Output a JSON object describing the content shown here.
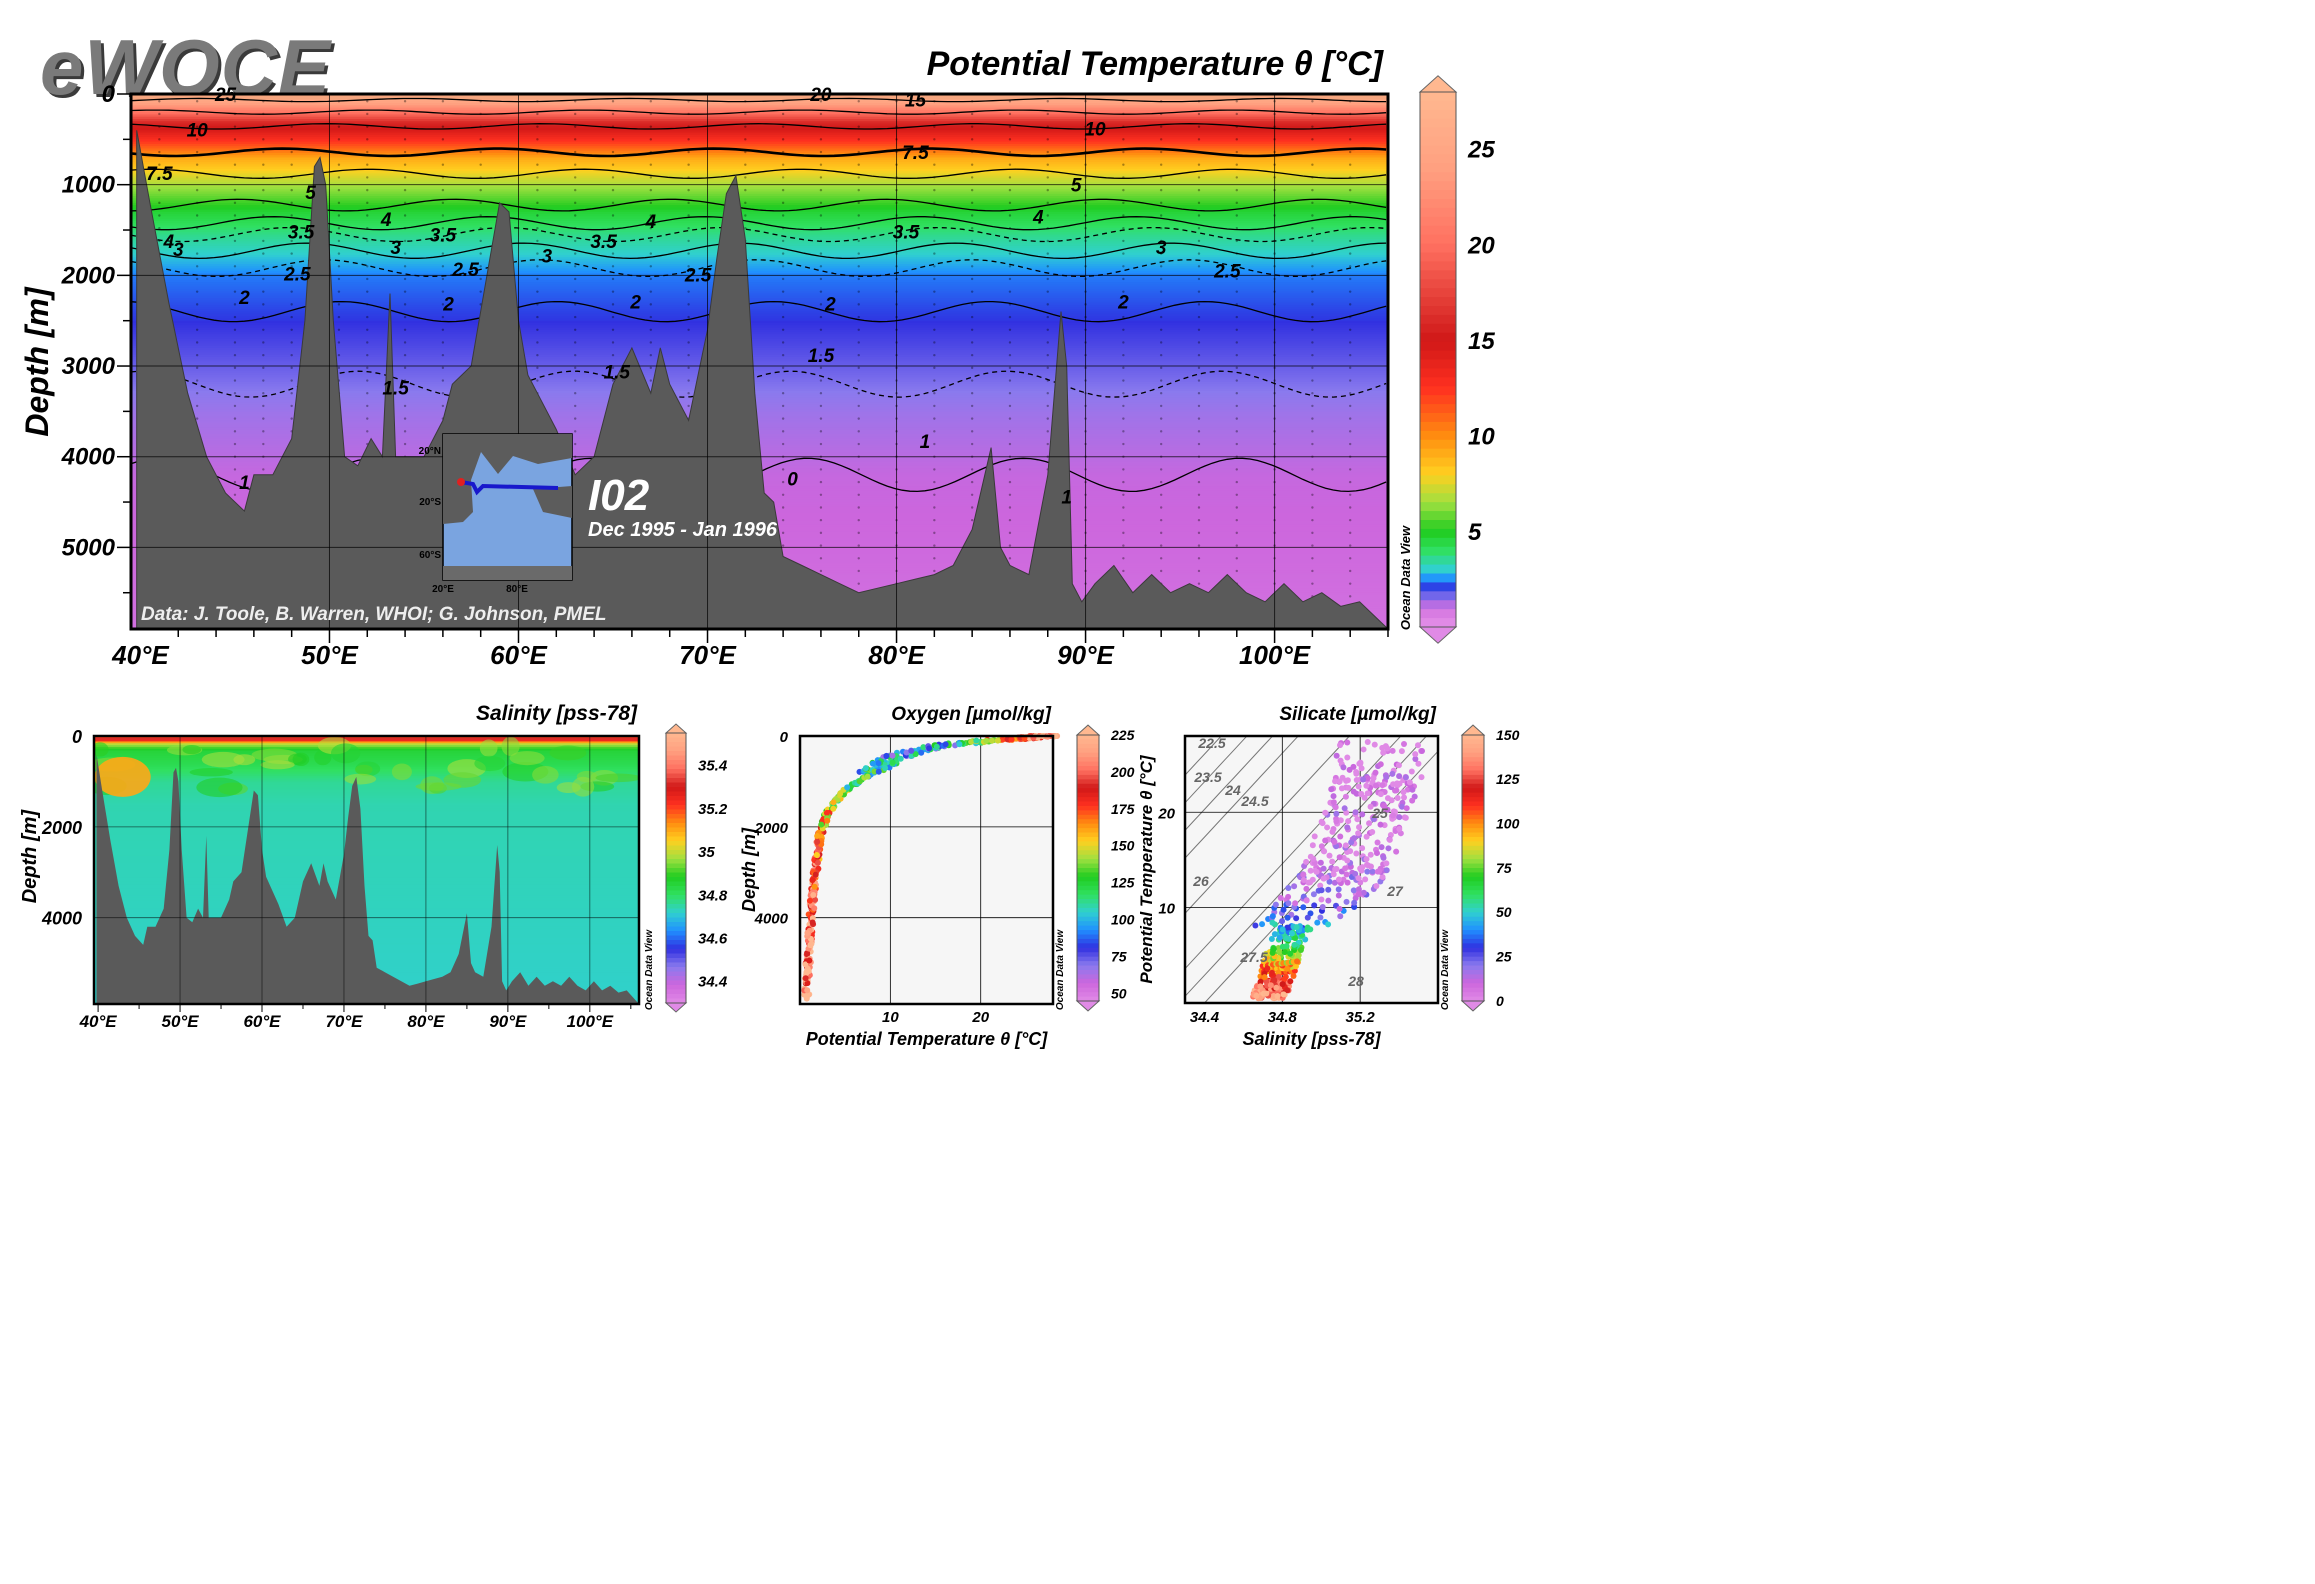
{
  "brand": {
    "logo_text": "eWOCE"
  },
  "watermark": "Ocean Data View",
  "colors": {
    "seafloor": "#5a5a5a",
    "frame": "#000000",
    "odv_scale": [
      "#e08ae6",
      "#cc66dd",
      "#8a7aee",
      "#3030e0",
      "#2090ff",
      "#30d0d0",
      "#30e060",
      "#20cc20",
      "#a0e040",
      "#ffd020",
      "#ff8c10",
      "#ff3020",
      "#d01818",
      "#ff7060",
      "#ffa080",
      "#ffb890"
    ]
  },
  "main_section": {
    "title": "Potential Temperature θ [°C]",
    "ylabel": "Depth [m]",
    "y_ticks": [
      "0",
      "1000",
      "2000",
      "3000",
      "4000",
      "5000"
    ],
    "x_ticks": [
      "40°E",
      "50°E",
      "60°E",
      "70°E",
      "80°E",
      "90°E",
      "100°E"
    ],
    "section_name": "I02",
    "date_range": "Dec 1995 - Jan 1996",
    "credit": "Data: J. Toole, B. Warren, WHOI; G. Johnson, PMEL",
    "colorbar_ticks": [
      "25",
      "20",
      "15",
      "10",
      "5"
    ],
    "contour_labels": [
      "25",
      "20",
      "15",
      "10",
      "10",
      "7.5",
      "7.5",
      "5",
      "5",
      "4",
      "4",
      "4",
      "4",
      "3.5",
      "3.5",
      "3.5",
      "3.5",
      "3",
      "3",
      "3",
      "3",
      "2.5",
      "2.5",
      "2.5",
      "2.5",
      "2",
      "2",
      "2",
      "2",
      "2",
      "1.5",
      "1.5",
      "1.5",
      "1",
      "1",
      "1",
      "0"
    ],
    "inset_map": {
      "lat_labels": [
        "20°N",
        "20°S",
        "60°S"
      ],
      "lon_labels": [
        "20°E",
        "80°E"
      ]
    }
  },
  "salinity_panel": {
    "title": "Salinity [pss-78]",
    "ylabel": "Depth [m]",
    "y_ticks": [
      "0",
      "2000",
      "4000"
    ],
    "x_ticks": [
      "40°E",
      "50°E",
      "60°E",
      "70°E",
      "80°E",
      "90°E",
      "100°E"
    ],
    "colorbar_ticks": [
      "35.4",
      "35.2",
      "35",
      "34.8",
      "34.6",
      "34.4"
    ]
  },
  "oxygen_panel": {
    "title": "Oxygen [µmol/kg]",
    "xlabel": "Potential Temperature θ [°C]",
    "ylabel": "Depth [m]",
    "y_ticks": [
      "0",
      "2000",
      "4000"
    ],
    "x_ticks": [
      "10",
      "20"
    ],
    "colorbar_ticks": [
      "225",
      "200",
      "175",
      "150",
      "125",
      "100",
      "75",
      "50"
    ]
  },
  "silicate_panel": {
    "title": "Silicate [µmol/kg]",
    "xlabel": "Salinity [pss-78]",
    "ylabel": "Potential Temperature θ [°C]",
    "y_ticks": [
      "20",
      "10"
    ],
    "x_ticks": [
      "34.4",
      "34.8",
      "35.2"
    ],
    "colorbar_ticks": [
      "150",
      "125",
      "100",
      "75",
      "50",
      "25",
      "0"
    ],
    "density_labels": [
      "22.5",
      "23.5",
      "24",
      "24.5",
      "25",
      "26",
      "27",
      "27.5",
      "28"
    ]
  },
  "chart_data": [
    {
      "type": "heatmap",
      "title": "Potential Temperature θ [°C]",
      "xlabel": "",
      "ylabel": "Depth [m]",
      "xlim": [
        39.5,
        106
      ],
      "ylim": [
        5900,
        0
      ],
      "colorbar_range": [
        0,
        28
      ],
      "contour_levels": [
        1,
        1.5,
        2,
        2.5,
        3,
        3.5,
        4,
        5,
        7.5,
        10,
        15,
        20,
        25
      ],
      "profile_depth": [
        0,
        100,
        300,
        700,
        1000,
        1300,
        1550,
        1800,
        2000,
        2400,
        2900,
        3500,
        4200,
        5900
      ],
      "profile_temp": [
        27,
        24,
        16,
        9,
        6.5,
        4.5,
        3.5,
        2.8,
        2.3,
        2.0,
        1.7,
        1.3,
        1.0,
        0.8
      ],
      "bathymetry_lon": [
        39.8,
        40.5,
        41.5,
        42.5,
        43.5,
        44.5,
        45.5,
        46,
        47,
        48,
        48.7,
        49.2,
        49.5,
        49.8,
        50.2,
        50.8,
        51.5,
        52.2,
        52.8,
        53.2,
        53.5,
        54,
        55,
        56,
        56.5,
        57.5,
        58.5,
        59,
        59.5,
        60,
        60.5,
        61,
        62,
        63,
        64,
        65,
        66,
        67,
        67.5,
        68,
        69,
        70,
        70.5,
        71,
        71.5,
        72,
        72.5,
        73,
        73.5,
        74,
        75,
        76,
        77,
        78,
        79,
        80,
        81,
        82,
        83,
        84,
        85,
        85.5,
        86,
        87,
        88,
        88.7,
        89,
        89.3,
        89.8,
        90.5,
        91.5,
        92.5,
        93.5,
        94.5,
        95.5,
        96.5,
        97.5,
        98.5,
        99.5,
        100.5,
        101.5,
        102.5,
        103.5,
        104.5,
        105.5,
        106
      ],
      "bathymetry_depth": [
        400,
        1200,
        2300,
        3300,
        4000,
        4400,
        4600,
        4200,
        4200,
        3800,
        2500,
        800,
        700,
        1000,
        2500,
        4000,
        4100,
        3800,
        4000,
        2200,
        4000,
        4000,
        4000,
        3600,
        3200,
        3000,
        1800,
        1200,
        1300,
        2500,
        3100,
        3300,
        3700,
        4200,
        4000,
        3200,
        2800,
        3300,
        2800,
        3200,
        3600,
        2600,
        1800,
        1100,
        900,
        1600,
        3300,
        4400,
        4500,
        5100,
        5200,
        5300,
        5400,
        5500,
        5450,
        5400,
        5350,
        5300,
        5200,
        4800,
        3900,
        5000,
        5200,
        5300,
        4200,
        2400,
        3000,
        5400,
        5600,
        5400,
        5200,
        5500,
        5300,
        5500,
        5400,
        5500,
        5300,
        5500,
        5600,
        5400,
        5600,
        5500,
        5650,
        5600,
        5800,
        5900
      ],
      "station_lon": [
        41,
        43,
        45,
        46.5,
        48,
        50.5,
        52,
        54,
        56,
        58,
        61,
        63,
        65,
        67,
        69,
        72,
        74,
        76,
        78,
        80,
        82,
        84,
        86,
        88,
        90,
        92,
        94,
        96,
        98,
        100,
        102,
        104
      ]
    },
    {
      "type": "heatmap",
      "title": "Salinity [pss-78]",
      "xlabel": "",
      "ylabel": "Depth [m]",
      "xlim": [
        39.5,
        106
      ],
      "ylim": [
        5900,
        0
      ],
      "colorbar_range": [
        34.3,
        35.55
      ],
      "profile_depth": [
        0,
        50,
        150,
        300,
        600,
        1000,
        1500,
        5900
      ],
      "profile_salinity": [
        35.2,
        35.35,
        35.0,
        34.85,
        34.82,
        34.76,
        34.74,
        34.72
      ]
    },
    {
      "type": "scatter",
      "title": "Oxygen [µmol/kg]",
      "xlabel": "Potential Temperature θ [°C]",
      "ylabel": "Depth [m]",
      "xlim": [
        0,
        28
      ],
      "ylim": [
        5900,
        0
      ],
      "colorbar_range": [
        45,
        225
      ],
      "depth_profile": [
        0,
        50,
        100,
        200,
        300,
        500,
        800,
        1200,
        1700,
        2200,
        3000,
        4000,
        5000,
        5800
      ],
      "temp_profile": [
        27,
        25,
        21,
        16,
        13,
        10,
        8,
        5,
        3,
        2.2,
        1.7,
        1.2,
        0.9,
        0.7
      ],
      "oxygen_profile": [
        205,
        195,
        140,
        100,
        90,
        95,
        110,
        125,
        150,
        175,
        190,
        200,
        210,
        215
      ]
    },
    {
      "type": "scatter",
      "title": "Silicate [µmol/kg]",
      "xlabel": "Salinity [pss-78]",
      "ylabel": "Potential Temperature θ [°C]",
      "xlim": [
        34.3,
        35.6
      ],
      "ylim": [
        0,
        28
      ],
      "colorbar_range": [
        0,
        150
      ],
      "ts_curve_salinity": [
        34.73,
        34.76,
        34.8,
        34.85,
        34.9,
        35.0,
        35.1,
        35.15,
        35.2,
        35.25,
        35.3
      ],
      "ts_curve_temp": [
        0.8,
        2,
        5,
        7.5,
        9,
        11,
        13,
        15,
        18,
        21,
        24
      ],
      "ts_curve_silicate": [
        140,
        125,
        80,
        50,
        30,
        15,
        8,
        5,
        3,
        2,
        1
      ],
      "density_levels": [
        22.5,
        23.5,
        24,
        24.5,
        25,
        26,
        27,
        27.5,
        28
      ]
    }
  ]
}
